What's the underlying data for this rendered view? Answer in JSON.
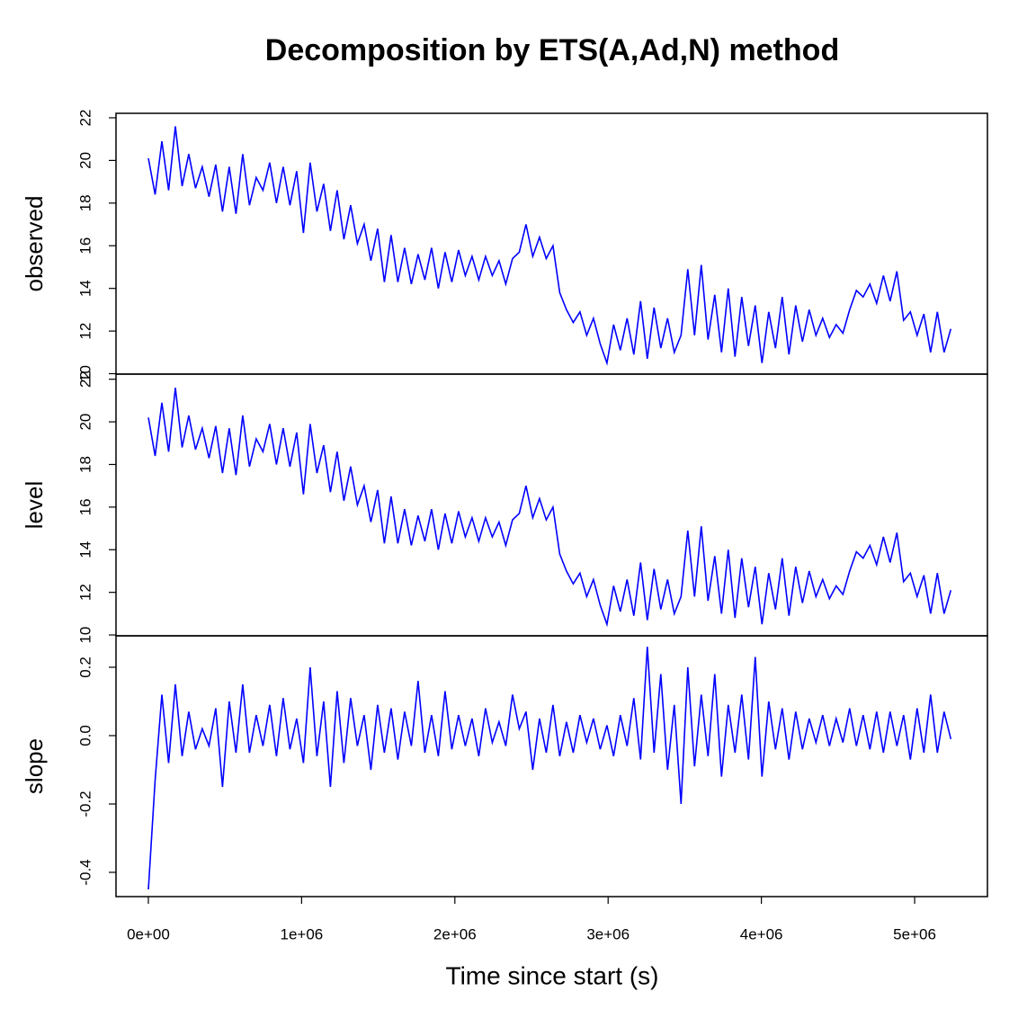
{
  "chart_data": {
    "type": "line",
    "title": "Decomposition by ETS(A,Ad,N) method",
    "xlabel": "Time since start (s)",
    "color": "#0000ff",
    "xlim": [
      -211000,
      5475000
    ],
    "xticks": [
      {
        "value": 0,
        "label": "0e+00"
      },
      {
        "value": 1000000,
        "label": "1e+06"
      },
      {
        "value": 2000000,
        "label": "2e+06"
      },
      {
        "value": 3000000,
        "label": "3e+06"
      },
      {
        "value": 4000000,
        "label": "4e+06"
      },
      {
        "value": 5000000,
        "label": "5e+06"
      }
    ],
    "x": [
      0,
      44000,
      88000,
      132000,
      176000,
      220000,
      264000,
      308000,
      352000,
      396000,
      440000,
      484000,
      528000,
      572000,
      616000,
      660000,
      704000,
      748000,
      792000,
      836000,
      880000,
      924000,
      968000,
      1012000,
      1056000,
      1100000,
      1144000,
      1188000,
      1232000,
      1276000,
      1320000,
      1364000,
      1408000,
      1452000,
      1496000,
      1540000,
      1584000,
      1628000,
      1672000,
      1716000,
      1760000,
      1804000,
      1848000,
      1892000,
      1936000,
      1980000,
      2024000,
      2068000,
      2112000,
      2156000,
      2200000,
      2244000,
      2288000,
      2332000,
      2376000,
      2420000,
      2464000,
      2508000,
      2552000,
      2596000,
      2640000,
      2684000,
      2728000,
      2772000,
      2816000,
      2860000,
      2904000,
      2948000,
      2992000,
      3036000,
      3080000,
      3124000,
      3168000,
      3212000,
      3256000,
      3300000,
      3344000,
      3388000,
      3432000,
      3476000,
      3520000,
      3564000,
      3608000,
      3652000,
      3696000,
      3740000,
      3784000,
      3828000,
      3872000,
      3916000,
      3960000,
      4004000,
      4048000,
      4092000,
      4136000,
      4180000,
      4224000,
      4268000,
      4312000,
      4356000,
      4400000,
      4444000,
      4488000,
      4532000,
      4576000,
      4620000,
      4664000,
      4708000,
      4752000,
      4796000,
      4840000,
      4884000,
      4928000,
      4972000,
      5016000,
      5060000,
      5104000,
      5148000,
      5192000,
      5236000
    ],
    "panels": [
      {
        "ylabel": "observed",
        "ylim": [
          9.98,
          22.21
        ],
        "yticks": [
          10,
          12,
          14,
          16,
          18,
          20,
          22
        ],
        "values": [
          20.1,
          18.4,
          20.9,
          18.6,
          21.6,
          18.8,
          20.3,
          18.7,
          19.7,
          18.3,
          19.8,
          17.6,
          19.7,
          17.5,
          20.3,
          17.9,
          19.2,
          18.6,
          19.9,
          18.0,
          19.7,
          17.9,
          19.5,
          16.6,
          19.9,
          17.6,
          18.9,
          16.7,
          18.6,
          16.3,
          17.9,
          16.1,
          17.0,
          15.3,
          16.8,
          14.3,
          16.5,
          14.3,
          15.9,
          14.2,
          15.6,
          14.4,
          15.9,
          14.0,
          15.7,
          14.3,
          15.8,
          14.6,
          15.5,
          14.4,
          15.5,
          14.6,
          15.3,
          14.2,
          15.4,
          15.7,
          17.0,
          15.5,
          16.4,
          15.4,
          16.0,
          13.8,
          13.0,
          12.4,
          12.9,
          11.8,
          12.6,
          11.4,
          10.5,
          12.3,
          11.1,
          12.6,
          10.9,
          13.4,
          10.7,
          13.1,
          11.2,
          12.6,
          11.0,
          11.8,
          14.9,
          11.8,
          15.1,
          11.6,
          13.7,
          11.0,
          14.0,
          10.8,
          13.6,
          11.3,
          13.2,
          10.5,
          12.9,
          11.2,
          13.6,
          10.9,
          13.2,
          11.5,
          13.0,
          11.8,
          12.6,
          11.7,
          12.3,
          11.9,
          13.0,
          13.9,
          13.6,
          14.2,
          13.3,
          14.6,
          13.4,
          14.8,
          12.5,
          12.9,
          11.8,
          12.8,
          11.0,
          12.9,
          11.0,
          12.1
        ]
      },
      {
        "ylabel": "level",
        "ylim": [
          9.96,
          22.24
        ],
        "yticks": [
          10,
          12,
          14,
          16,
          18,
          20,
          22
        ],
        "values": [
          20.2,
          18.4,
          20.9,
          18.6,
          21.6,
          18.8,
          20.3,
          18.7,
          19.7,
          18.3,
          19.8,
          17.6,
          19.7,
          17.5,
          20.3,
          17.9,
          19.2,
          18.6,
          19.9,
          18.0,
          19.7,
          17.9,
          19.5,
          16.6,
          19.9,
          17.6,
          18.9,
          16.7,
          18.6,
          16.3,
          17.9,
          16.1,
          17.0,
          15.3,
          16.8,
          14.3,
          16.5,
          14.3,
          15.9,
          14.2,
          15.6,
          14.4,
          15.9,
          14.0,
          15.7,
          14.3,
          15.8,
          14.6,
          15.5,
          14.4,
          15.5,
          14.6,
          15.3,
          14.2,
          15.4,
          15.7,
          17.0,
          15.5,
          16.4,
          15.4,
          16.0,
          13.8,
          13.0,
          12.4,
          12.9,
          11.8,
          12.6,
          11.4,
          10.5,
          12.3,
          11.1,
          12.6,
          10.9,
          13.4,
          10.7,
          13.1,
          11.2,
          12.6,
          11.0,
          11.8,
          14.9,
          11.8,
          15.1,
          11.6,
          13.7,
          11.0,
          14.0,
          10.8,
          13.6,
          11.3,
          13.2,
          10.5,
          12.9,
          11.2,
          13.6,
          10.9,
          13.2,
          11.5,
          13.0,
          11.8,
          12.6,
          11.7,
          12.3,
          11.9,
          13.0,
          13.9,
          13.6,
          14.2,
          13.3,
          14.6,
          13.4,
          14.8,
          12.5,
          12.9,
          11.8,
          12.8,
          11.0,
          12.9,
          11.0,
          12.1
        ]
      },
      {
        "ylabel": "slope",
        "ylim": [
          -0.471,
          0.292
        ],
        "yticks": [
          {
            "value": -0.4,
            "label": "-0.4"
          },
          {
            "value": -0.2,
            "label": "-0.2"
          },
          {
            "value": 0,
            "label": "0.0"
          },
          {
            "value": 0.2,
            "label": "0.2"
          }
        ],
        "values": [
          -0.45,
          -0.13,
          0.12,
          -0.08,
          0.15,
          -0.06,
          0.07,
          -0.04,
          0.02,
          -0.03,
          0.08,
          -0.15,
          0.1,
          -0.05,
          0.15,
          -0.05,
          0.06,
          -0.03,
          0.09,
          -0.06,
          0.11,
          -0.04,
          0.05,
          -0.08,
          0.2,
          -0.06,
          0.1,
          -0.15,
          0.13,
          -0.08,
          0.11,
          -0.03,
          0.06,
          -0.1,
          0.09,
          -0.05,
          0.08,
          -0.07,
          0.07,
          -0.03,
          0.16,
          -0.05,
          0.06,
          -0.06,
          0.13,
          -0.04,
          0.06,
          -0.03,
          0.05,
          -0.06,
          0.08,
          -0.02,
          0.04,
          -0.03,
          0.12,
          0.02,
          0.07,
          -0.1,
          0.05,
          -0.05,
          0.09,
          -0.06,
          0.04,
          -0.05,
          0.06,
          -0.02,
          0.05,
          -0.04,
          0.03,
          -0.06,
          0.06,
          -0.03,
          0.11,
          -0.07,
          0.26,
          -0.05,
          0.18,
          -0.1,
          0.09,
          -0.2,
          0.2,
          -0.09,
          0.12,
          -0.06,
          0.18,
          -0.12,
          0.09,
          -0.05,
          0.12,
          -0.07,
          0.23,
          -0.12,
          0.1,
          -0.04,
          0.08,
          -0.07,
          0.07,
          -0.04,
          0.05,
          -0.02,
          0.06,
          -0.03,
          0.05,
          -0.02,
          0.08,
          -0.03,
          0.06,
          -0.04,
          0.07,
          -0.05,
          0.07,
          -0.03,
          0.06,
          -0.07,
          0.08,
          -0.05,
          0.12,
          -0.05,
          0.07,
          -0.01
        ]
      }
    ]
  }
}
